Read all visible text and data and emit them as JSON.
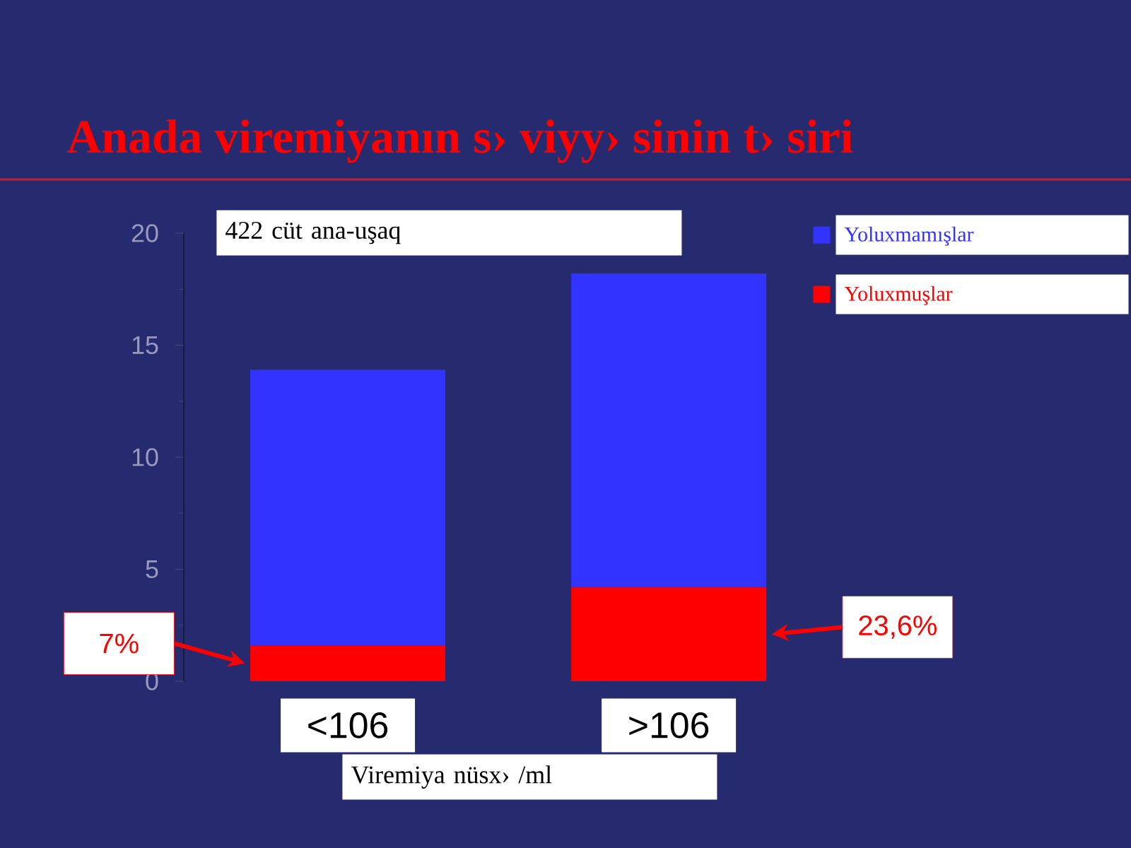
{
  "chart_data": {
    "type": "bar",
    "stacked": true,
    "title": "Anada viremiyanın s› viyy› sinin t› siri",
    "xlabel": "Viremiya nüsx› /ml",
    "categories": [
      "<106",
      ">106"
    ],
    "series": [
      {
        "name": "Yoluxmuşlar",
        "color": "#ff0000",
        "values": [
          1.6,
          4.2
        ]
      },
      {
        "name": "Yoluxmamışlar",
        "color": "#3333ff",
        "values": [
          12.3,
          14.0
        ]
      }
    ],
    "ylim": [
      0,
      20
    ],
    "yticks": [
      0,
      5,
      10,
      15,
      20
    ],
    "legend": "top right",
    "annotations": [
      "422 cüt ana-uşaq",
      "7%",
      "23,6%"
    ]
  }
}
